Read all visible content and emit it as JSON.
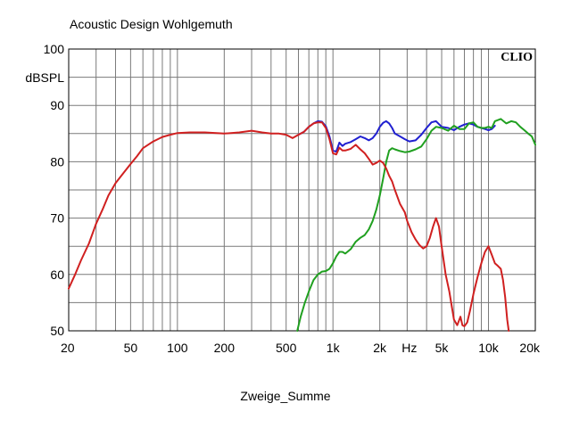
{
  "chart_data": {
    "type": "line",
    "title": "Acoustic Design Wohlgemuth",
    "brand": "CLIO",
    "ylabel": "dBSPL",
    "xlabel": "Zweige_Summe",
    "x_unit_label": "Hz",
    "xscale": "log",
    "xlim": [
      20,
      20000
    ],
    "ylim": [
      50,
      100
    ],
    "grid": true,
    "y_ticks": [
      50,
      60,
      70,
      80,
      90,
      100
    ],
    "x_ticks": [
      {
        "value": 20,
        "label": "20"
      },
      {
        "value": 50,
        "label": "50"
      },
      {
        "value": 100,
        "label": "100"
      },
      {
        "value": 200,
        "label": "200"
      },
      {
        "value": 500,
        "label": "500"
      },
      {
        "value": 1000,
        "label": "1k"
      },
      {
        "value": 2000,
        "label": "2k"
      },
      {
        "value": 5000,
        "label": "5k"
      },
      {
        "value": 10000,
        "label": "10k"
      },
      {
        "value": 20000,
        "label": "20k"
      }
    ],
    "series": [
      {
        "color": "#2020d0",
        "points": [
          [
            600,
            84.8
          ],
          [
            650,
            85.3
          ],
          [
            700,
            86.2
          ],
          [
            750,
            86.8
          ],
          [
            800,
            87.2
          ],
          [
            850,
            87.1
          ],
          [
            900,
            86.3
          ],
          [
            950,
            84.5
          ],
          [
            1000,
            82.0
          ],
          [
            1050,
            81.8
          ],
          [
            1100,
            83.4
          ],
          [
            1150,
            82.8
          ],
          [
            1200,
            83.2
          ],
          [
            1300,
            83.5
          ],
          [
            1400,
            84.0
          ],
          [
            1500,
            84.5
          ],
          [
            1600,
            84.2
          ],
          [
            1700,
            83.8
          ],
          [
            1800,
            84.2
          ],
          [
            1900,
            85.0
          ],
          [
            2000,
            86.2
          ],
          [
            2100,
            86.9
          ],
          [
            2200,
            87.2
          ],
          [
            2300,
            86.8
          ],
          [
            2400,
            86.0
          ],
          [
            2500,
            85.0
          ],
          [
            2700,
            84.5
          ],
          [
            2900,
            84.0
          ],
          [
            3100,
            83.6
          ],
          [
            3400,
            83.8
          ],
          [
            3700,
            84.8
          ],
          [
            4000,
            86.0
          ],
          [
            4300,
            87.0
          ],
          [
            4600,
            87.2
          ],
          [
            5000,
            86.2
          ],
          [
            5500,
            86.0
          ],
          [
            6000,
            85.6
          ],
          [
            6500,
            86.2
          ],
          [
            7000,
            86.6
          ],
          [
            7500,
            86.8
          ],
          [
            8000,
            86.6
          ],
          [
            8500,
            86.2
          ],
          [
            9000,
            86.0
          ],
          [
            9500,
            85.8
          ],
          [
            10000,
            85.6
          ],
          [
            10500,
            85.8
          ],
          [
            11000,
            86.4
          ]
        ]
      },
      {
        "color": "#20a020",
        "points": [
          [
            590,
            50.0
          ],
          [
            620,
            52.5
          ],
          [
            660,
            55.0
          ],
          [
            700,
            57.0
          ],
          [
            750,
            59.0
          ],
          [
            800,
            60.0
          ],
          [
            850,
            60.5
          ],
          [
            900,
            60.6
          ],
          [
            950,
            61.0
          ],
          [
            1000,
            62.0
          ],
          [
            1050,
            63.2
          ],
          [
            1100,
            64.0
          ],
          [
            1150,
            64.0
          ],
          [
            1200,
            63.7
          ],
          [
            1300,
            64.5
          ],
          [
            1400,
            65.8
          ],
          [
            1500,
            66.5
          ],
          [
            1600,
            67.0
          ],
          [
            1700,
            68.0
          ],
          [
            1800,
            69.5
          ],
          [
            1900,
            71.5
          ],
          [
            2000,
            74.0
          ],
          [
            2100,
            77.0
          ],
          [
            2200,
            80.0
          ],
          [
            2300,
            82.0
          ],
          [
            2400,
            82.4
          ],
          [
            2500,
            82.2
          ],
          [
            2700,
            81.9
          ],
          [
            2900,
            81.7
          ],
          [
            3100,
            81.8
          ],
          [
            3400,
            82.2
          ],
          [
            3700,
            82.7
          ],
          [
            4000,
            84.0
          ],
          [
            4300,
            85.5
          ],
          [
            4600,
            86.2
          ],
          [
            5000,
            86.0
          ],
          [
            5500,
            85.5
          ],
          [
            6000,
            86.4
          ],
          [
            6500,
            85.8
          ],
          [
            7000,
            85.8
          ],
          [
            7500,
            86.8
          ],
          [
            8000,
            87.0
          ],
          [
            8500,
            86.2
          ],
          [
            9000,
            86.0
          ],
          [
            9500,
            86.0
          ],
          [
            10000,
            86.2
          ],
          [
            10500,
            86.0
          ],
          [
            11000,
            87.2
          ],
          [
            12000,
            87.6
          ],
          [
            13000,
            86.8
          ],
          [
            14000,
            87.2
          ],
          [
            15000,
            87.0
          ],
          [
            16000,
            86.2
          ],
          [
            17000,
            85.6
          ],
          [
            18000,
            85.0
          ],
          [
            19000,
            84.5
          ],
          [
            20000,
            83.0
          ]
        ]
      },
      {
        "color": "#d02020",
        "points": [
          [
            20,
            57.5
          ],
          [
            22,
            60.0
          ],
          [
            24,
            62.5
          ],
          [
            27,
            65.5
          ],
          [
            30,
            69.0
          ],
          [
            33,
            71.5
          ],
          [
            36,
            74.0
          ],
          [
            40,
            76.2
          ],
          [
            45,
            78.0
          ],
          [
            50,
            79.6
          ],
          [
            55,
            81.0
          ],
          [
            60,
            82.4
          ],
          [
            70,
            83.6
          ],
          [
            80,
            84.4
          ],
          [
            90,
            84.8
          ],
          [
            100,
            85.1
          ],
          [
            120,
            85.2
          ],
          [
            150,
            85.2
          ],
          [
            200,
            85.0
          ],
          [
            250,
            85.2
          ],
          [
            300,
            85.5
          ],
          [
            350,
            85.2
          ],
          [
            400,
            85.0
          ],
          [
            450,
            85.0
          ],
          [
            500,
            84.8
          ],
          [
            550,
            84.2
          ],
          [
            600,
            84.8
          ],
          [
            650,
            85.3
          ],
          [
            700,
            86.2
          ],
          [
            750,
            86.8
          ],
          [
            800,
            87.0
          ],
          [
            850,
            87.0
          ],
          [
            900,
            86.0
          ],
          [
            950,
            84.0
          ],
          [
            1000,
            81.5
          ],
          [
            1050,
            81.3
          ],
          [
            1100,
            82.5
          ],
          [
            1150,
            82.0
          ],
          [
            1200,
            82.0
          ],
          [
            1300,
            82.3
          ],
          [
            1400,
            83.0
          ],
          [
            1500,
            82.2
          ],
          [
            1600,
            81.5
          ],
          [
            1700,
            80.5
          ],
          [
            1800,
            79.5
          ],
          [
            1900,
            79.8
          ],
          [
            2000,
            80.2
          ],
          [
            2100,
            79.8
          ],
          [
            2200,
            78.8
          ],
          [
            2300,
            77.5
          ],
          [
            2400,
            76.5
          ],
          [
            2500,
            75.0
          ],
          [
            2700,
            72.5
          ],
          [
            2900,
            71.0
          ],
          [
            3000,
            69.5
          ],
          [
            3200,
            67.5
          ],
          [
            3400,
            66.2
          ],
          [
            3600,
            65.2
          ],
          [
            3800,
            64.6
          ],
          [
            4000,
            65.0
          ],
          [
            4200,
            66.5
          ],
          [
            4400,
            68.5
          ],
          [
            4600,
            70.0
          ],
          [
            4800,
            68.5
          ],
          [
            5000,
            65.0
          ],
          [
            5300,
            60.0
          ],
          [
            5600,
            57.0
          ],
          [
            6000,
            52.0
          ],
          [
            6300,
            51.0
          ],
          [
            6600,
            52.5
          ],
          [
            6800,
            51.0
          ],
          [
            7000,
            50.8
          ],
          [
            7300,
            51.5
          ],
          [
            7600,
            53.5
          ],
          [
            8000,
            56.5
          ],
          [
            8500,
            59.5
          ],
          [
            9000,
            62.0
          ],
          [
            9500,
            64.0
          ],
          [
            10000,
            65.0
          ],
          [
            10500,
            63.5
          ],
          [
            11000,
            62.0
          ],
          [
            11500,
            61.5
          ],
          [
            12000,
            61.0
          ],
          [
            12400,
            59.0
          ],
          [
            12800,
            56.0
          ],
          [
            13200,
            52.0
          ],
          [
            13500,
            50.0
          ]
        ]
      }
    ]
  }
}
